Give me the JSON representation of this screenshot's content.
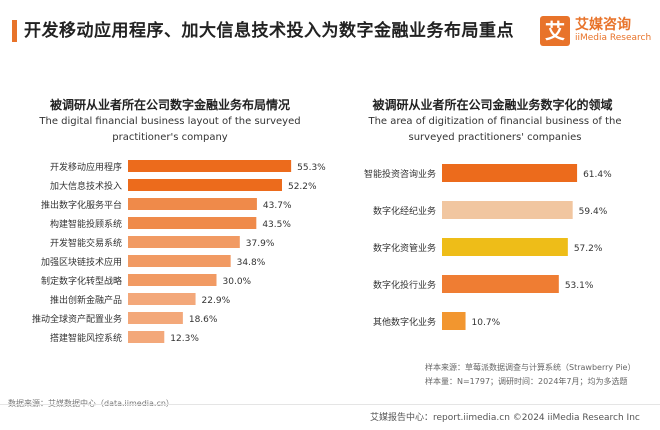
{
  "header": {
    "title": "开发移动应用程序、加大信息技术投入为数字金融业务布局重点",
    "logo_mark": "艾",
    "logo_cn": "艾媒咨询",
    "logo_en": "iiMedia Research"
  },
  "left_panel": {
    "title_cn": "被调研从业者所在公司数字金融业务布局情况",
    "title_en": "The digital financial business layout of the surveyed practitioner's company"
  },
  "right_panel": {
    "title_cn": "被调研从业者所在公司金融业务数字化的领域",
    "title_en": "The area of digitization of financial business of the surveyed practitioners' companies"
  },
  "chart_data": [
    {
      "type": "bar",
      "orientation": "horizontal",
      "title": "被调研从业者所在公司数字金融业务布局情况",
      "categories": [
        "开发移动应用程序",
        "加大信息技术投入",
        "推出数字化服务平台",
        "构建智能投顾系统",
        "开发智能交易系统",
        "加强区块链技术应用",
        "制定数字化转型战略",
        "推出创新金融产品",
        "推动全球资产配置业务",
        "搭建智能风控系统"
      ],
      "values": [
        55.3,
        52.2,
        43.7,
        43.5,
        37.9,
        34.8,
        30.0,
        22.9,
        18.6,
        12.3
      ],
      "value_labels": [
        "55.3%",
        "52.2%",
        "43.7%",
        "43.5%",
        "37.9%",
        "34.8%",
        "30.0%",
        "22.9%",
        "18.6%",
        "12.3%"
      ],
      "colors": [
        "#ec6b1c",
        "#ec6b1c",
        "#ef8a4a",
        "#ef8a4a",
        "#f19a63",
        "#f19a63",
        "#f19a63",
        "#f3a87a",
        "#f3a87a",
        "#f3a87a"
      ],
      "xlim": [
        0,
        60
      ]
    },
    {
      "type": "bar",
      "orientation": "horizontal",
      "title": "被调研从业者所在公司金融业务数字化的领域",
      "categories": [
        "智能投资咨询业务",
        "数字化经纪业务",
        "数字化资管业务",
        "数字化投行业务",
        "其他数字化业务"
      ],
      "values": [
        61.4,
        59.4,
        57.2,
        53.1,
        10.7
      ],
      "value_labels": [
        "61.4%",
        "59.4%",
        "57.2%",
        "53.1%",
        "10.7%"
      ],
      "colors": [
        "#ec6b1c",
        "#f1c6a0",
        "#eebd18",
        "#ef7d33",
        "#f2962f"
      ],
      "xlim": [
        0,
        80
      ]
    }
  ],
  "footer": {
    "source_left": "数据来源：艾媒数据中心（data.iimedia.cn）",
    "sample_source": "样本来源：草莓派数据调查与计算系统（Strawberry Pie）",
    "sample_info": "样本量：N=1797；调研时间：2024年7月；均为多选题",
    "brand_line": "艾媒报告中心：report.iimedia.cn    ©2024  iiMedia Research Inc"
  }
}
